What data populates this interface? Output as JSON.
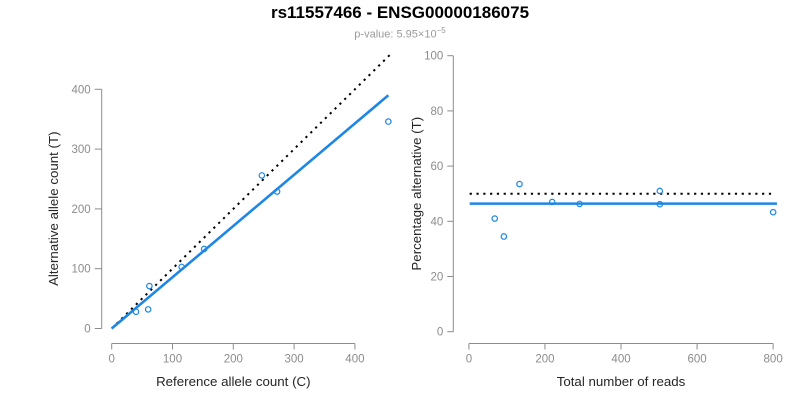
{
  "header": {
    "title": "rs11557466 - ENSG00000186075",
    "pvalue_base": "p-value: 5.95×10",
    "pvalue_exponent": "−5"
  },
  "colors": {
    "accent_blue": "#1E87E5",
    "expected_line": "#000000",
    "axis_gray": "#8c8c8c",
    "tick_label_gray": "#8c8c8c",
    "subtitle_gray": "#9a9a9a",
    "title_black": "#000000"
  },
  "chart_data": [
    {
      "type": "scatter",
      "panel": "allele-counts",
      "xlabel": "Reference allele count (C)",
      "ylabel": "Alternative allele count (T)",
      "xlim": [
        0,
        470
      ],
      "ylim": [
        0,
        460
      ],
      "x_ticks": [
        0,
        100,
        200,
        300,
        400
      ],
      "y_ticks": [
        0,
        100,
        200,
        300,
        400
      ],
      "grid": false,
      "points": [
        [
          40,
          28
        ],
        [
          60,
          32
        ],
        [
          62,
          71
        ],
        [
          115,
          103
        ],
        [
          152,
          133
        ],
        [
          247,
          256
        ],
        [
          272,
          229
        ],
        [
          455,
          346
        ]
      ],
      "lines": [
        {
          "name": "expected-line",
          "style": "dotted",
          "color": "#000000",
          "width": 2,
          "from": [
            0,
            0
          ],
          "to": [
            458,
            458
          ]
        },
        {
          "name": "fit-line",
          "style": "solid",
          "color": "#1E87E5",
          "width": 2.6,
          "from": [
            0,
            0
          ],
          "to": [
            455,
            390
          ]
        }
      ]
    },
    {
      "type": "scatter",
      "panel": "percentage-vs-reads",
      "xlabel": "Total number of reads",
      "ylabel": "Percentage alternative (T)",
      "xlim": [
        0,
        810
      ],
      "ylim": [
        0,
        100
      ],
      "x_ticks": [
        0,
        200,
        400,
        600,
        800
      ],
      "y_ticks": [
        0,
        20,
        40,
        60,
        80,
        100
      ],
      "grid": false,
      "points": [
        [
          68,
          41
        ],
        [
          92,
          34.5
        ],
        [
          133,
          53.5
        ],
        [
          219,
          47
        ],
        [
          291,
          46.3
        ],
        [
          502,
          51
        ],
        [
          502,
          46.2
        ],
        [
          800,
          43.3
        ]
      ],
      "lines": [
        {
          "name": "expected-line",
          "style": "dotted",
          "color": "#000000",
          "width": 2,
          "y": 50,
          "span": [
            2,
            805
          ]
        },
        {
          "name": "fit-line",
          "style": "solid",
          "color": "#1E87E5",
          "width": 2.6,
          "y": 46.4,
          "span": [
            2,
            810
          ]
        }
      ]
    }
  ]
}
